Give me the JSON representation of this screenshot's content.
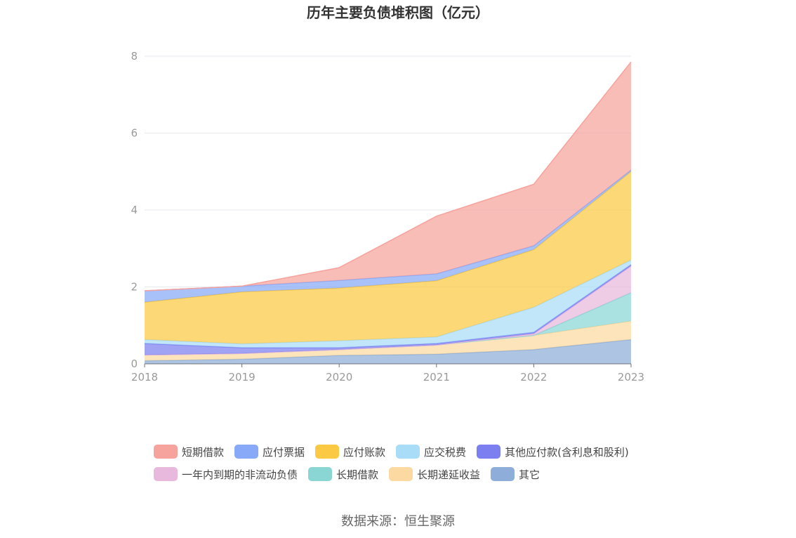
{
  "chart_data": {
    "type": "area",
    "stacked": true,
    "title": "历年主要负债堆积图（亿元）",
    "x": [
      "2018",
      "2019",
      "2020",
      "2021",
      "2022",
      "2023"
    ],
    "ylim": [
      0,
      8
    ],
    "yticks": [
      "0",
      "2",
      "4",
      "6",
      "8"
    ],
    "grid": true,
    "legend_position": "bottom",
    "series": [
      {
        "name": "其它",
        "color": "#8eadd8",
        "values": [
          0.08,
          0.12,
          0.22,
          0.25,
          0.37,
          0.63
        ]
      },
      {
        "name": "长期递延收益",
        "color": "#fcd9a0",
        "values": [
          0.15,
          0.15,
          0.15,
          0.24,
          0.37,
          0.48
        ]
      },
      {
        "name": "长期借款",
        "color": "#89d6d5",
        "values": [
          0,
          0,
          0,
          0,
          0,
          0.74
        ]
      },
      {
        "name": "一年内到期的非流动负债",
        "color": "#e8b9dc",
        "values": [
          0,
          0,
          0,
          0,
          0.04,
          0.69
        ]
      },
      {
        "name": "其他应付款(含利息和股利)",
        "color": "#7b7ff0",
        "values": [
          0.3,
          0.15,
          0.05,
          0.04,
          0.04,
          0.04
        ]
      },
      {
        "name": "应交税费",
        "color": "#a9dcf7",
        "values": [
          0.1,
          0.1,
          0.18,
          0.17,
          0.65,
          0.12
        ]
      },
      {
        "name": "应付账款",
        "color": "#fbc943",
        "values": [
          0.97,
          1.35,
          1.37,
          1.46,
          1.5,
          2.3
        ]
      },
      {
        "name": "应付票据",
        "color": "#88a9f7",
        "values": [
          0.3,
          0.15,
          0.2,
          0.18,
          0.1,
          0.04
        ]
      },
      {
        "name": "短期借款",
        "color": "#f6a39d",
        "values": [
          0,
          0,
          0.33,
          1.5,
          1.6,
          2.81
        ]
      }
    ]
  },
  "legend": {
    "row1": [
      {
        "label": "短期借款",
        "color": "#f6a39d"
      },
      {
        "label": "应付票据",
        "color": "#88a9f7"
      },
      {
        "label": "应付账款",
        "color": "#fbc943"
      },
      {
        "label": "应交税费",
        "color": "#a9dcf7"
      },
      {
        "label": "其他应付款(含利息和股利)",
        "color": "#7b7ff0"
      }
    ],
    "row2": [
      {
        "label": "一年内到期的非流动负债",
        "color": "#e8b9dc"
      },
      {
        "label": "长期借款",
        "color": "#89d6d5"
      },
      {
        "label": "长期递延收益",
        "color": "#fcd9a0"
      },
      {
        "label": "其它",
        "color": "#8eadd8"
      }
    ]
  },
  "source": "数据来源：恒生聚源"
}
